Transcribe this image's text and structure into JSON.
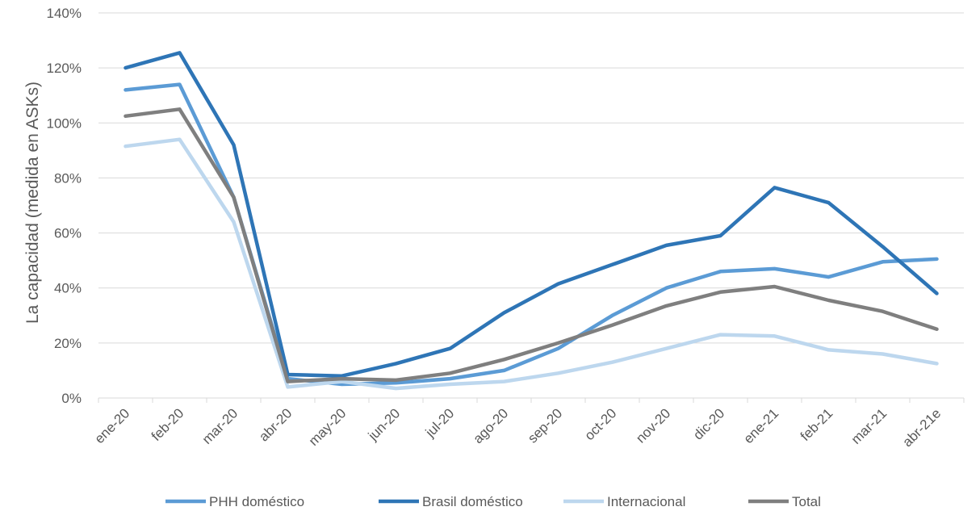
{
  "chart_data": {
    "type": "line",
    "title": "",
    "xlabel": "",
    "ylabel": "La capacidad (medida en ASKs)",
    "ylim": [
      0,
      140
    ],
    "yticks": [
      "0%",
      "20%",
      "40%",
      "60%",
      "80%",
      "100%",
      "120%",
      "140%"
    ],
    "grid": true,
    "legend_position": "bottom",
    "categories": [
      "ene-20",
      "feb-20",
      "mar-20",
      "abr-20",
      "may-20",
      "jun-20",
      "jul-20",
      "ago-20",
      "sep-20",
      "oct-20",
      "nov-20",
      "dic-20",
      "ene-21",
      "feb-21",
      "mar-21",
      "abr-21e"
    ],
    "series": [
      {
        "name": "PHH doméstico",
        "color": "#5b9bd5",
        "values": [
          112,
          114,
          73,
          7,
          5,
          5.5,
          7,
          10,
          18,
          30,
          40,
          46,
          47,
          44,
          49.5,
          50.5
        ]
      },
      {
        "name": "Brasil doméstico",
        "color": "#2e75b6",
        "values": [
          120,
          125.5,
          92,
          8.5,
          8,
          12.5,
          18,
          31,
          41.5,
          48.5,
          55.5,
          59,
          76.5,
          71,
          55,
          38
        ]
      },
      {
        "name": "Internacional",
        "color": "#bdd7ee",
        "values": [
          91.5,
          94,
          64,
          4,
          6,
          3.5,
          5,
          6,
          9,
          13,
          18,
          23,
          22.5,
          17.5,
          16,
          12.5
        ]
      },
      {
        "name": "Total",
        "color": "#7f7f7f",
        "values": [
          102.5,
          105,
          73,
          6,
          7,
          6.5,
          9,
          14,
          20,
          26.5,
          33.5,
          38.5,
          40.5,
          35.5,
          31.5,
          25
        ]
      }
    ]
  }
}
